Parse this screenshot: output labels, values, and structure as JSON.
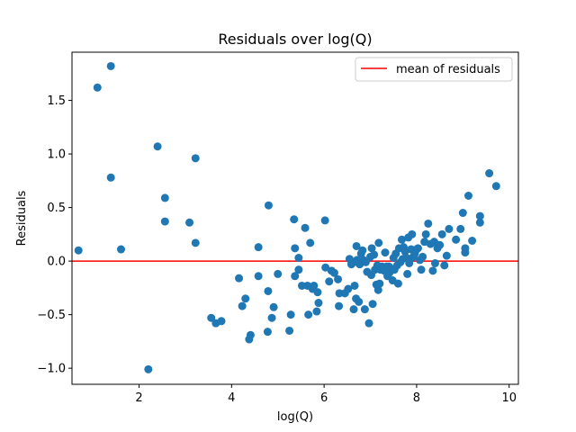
{
  "chart_data": {
    "type": "scatter",
    "title": "Residuals over log(Q)",
    "xlabel": "log(Q)",
    "ylabel": "Residuals",
    "xlim": [
      0.55,
      10.2
    ],
    "ylim": [
      -1.15,
      1.95
    ],
    "xticks": [
      2,
      4,
      6,
      8,
      10
    ],
    "xtick_labels": [
      "2",
      "4",
      "6",
      "8",
      "10"
    ],
    "yticks": [
      -1.0,
      -0.5,
      0.0,
      0.5,
      1.0,
      1.5
    ],
    "ytick_labels": [
      "−1.0",
      "−0.5",
      "0.0",
      "0.5",
      "1.0",
      "1.5"
    ],
    "grid": false,
    "point_color": "#1f77b4",
    "mean_line": {
      "name": "mean of residuals",
      "y": 0.0,
      "color": "#ff0000"
    },
    "legend": {
      "location": "top-right",
      "entries": [
        "mean of residuals"
      ]
    },
    "points": [
      [
        0.69,
        0.1
      ],
      [
        1.1,
        1.62
      ],
      [
        1.39,
        1.82
      ],
      [
        1.39,
        0.78
      ],
      [
        1.61,
        0.11
      ],
      [
        2.2,
        -1.01
      ],
      [
        2.4,
        1.07
      ],
      [
        2.56,
        0.59
      ],
      [
        2.56,
        0.37
      ],
      [
        3.09,
        0.36
      ],
      [
        3.22,
        0.96
      ],
      [
        3.22,
        0.17
      ],
      [
        3.56,
        -0.53
      ],
      [
        3.66,
        -0.58
      ],
      [
        3.78,
        -0.56
      ],
      [
        4.16,
        -0.16
      ],
      [
        4.23,
        -0.42
      ],
      [
        4.3,
        -0.35
      ],
      [
        4.38,
        -0.73
      ],
      [
        4.41,
        -0.69
      ],
      [
        4.58,
        0.13
      ],
      [
        4.58,
        -0.14
      ],
      [
        4.78,
        -0.66
      ],
      [
        4.79,
        -0.28
      ],
      [
        4.8,
        0.52
      ],
      [
        4.87,
        -0.53
      ],
      [
        4.91,
        -0.43
      ],
      [
        5.0,
        -0.12
      ],
      [
        5.25,
        -0.65
      ],
      [
        5.28,
        -0.5
      ],
      [
        5.35,
        0.39
      ],
      [
        5.37,
        0.12
      ],
      [
        5.37,
        -0.14
      ],
      [
        5.45,
        -0.08
      ],
      [
        5.45,
        0.03
      ],
      [
        5.52,
        -0.23
      ],
      [
        5.59,
        0.31
      ],
      [
        5.64,
        -0.23
      ],
      [
        5.66,
        -0.5
      ],
      [
        5.7,
        0.17
      ],
      [
        5.75,
        -0.26
      ],
      [
        5.78,
        -0.23
      ],
      [
        5.84,
        -0.47
      ],
      [
        5.86,
        -0.29
      ],
      [
        5.88,
        -0.39
      ],
      [
        6.02,
        0.38
      ],
      [
        6.03,
        -0.06
      ],
      [
        6.11,
        -0.19
      ],
      [
        6.16,
        -0.09
      ],
      [
        6.22,
        -0.11
      ],
      [
        6.3,
        -0.17
      ],
      [
        6.32,
        -0.42
      ],
      [
        6.33,
        -0.3
      ],
      [
        6.45,
        -0.3
      ],
      [
        6.52,
        -0.26
      ],
      [
        6.55,
        0.02
      ],
      [
        6.59,
        -0.03
      ],
      [
        6.64,
        -0.45
      ],
      [
        6.66,
        -0.23
      ],
      [
        6.69,
        -0.35
      ],
      [
        6.7,
        0.14
      ],
      [
        6.71,
        0.01
      ],
      [
        6.72,
        -0.01
      ],
      [
        6.75,
        -0.38
      ],
      [
        6.77,
        -0.03
      ],
      [
        6.8,
        0.07
      ],
      [
        6.83,
        0.1
      ],
      [
        6.85,
        0.01
      ],
      [
        6.88,
        -0.45
      ],
      [
        6.9,
        -0.01
      ],
      [
        6.93,
        -0.1
      ],
      [
        6.97,
        -0.58
      ],
      [
        7.0,
        0.04
      ],
      [
        7.02,
        -0.13
      ],
      [
        7.03,
        0.12
      ],
      [
        7.05,
        -0.4
      ],
      [
        7.08,
        0.06
      ],
      [
        7.1,
        -0.08
      ],
      [
        7.13,
        -0.22
      ],
      [
        7.15,
        -0.04
      ],
      [
        7.17,
        -0.27
      ],
      [
        7.18,
        0.17
      ],
      [
        7.2,
        -0.21
      ],
      [
        7.22,
        -0.08
      ],
      [
        7.25,
        -0.05
      ],
      [
        7.3,
        -0.09
      ],
      [
        7.32,
        0.08
      ],
      [
        7.35,
        -0.05
      ],
      [
        7.37,
        -0.14
      ],
      [
        7.4,
        -0.05
      ],
      [
        7.41,
        -0.11
      ],
      [
        7.45,
        -0.07
      ],
      [
        7.48,
        -0.18
      ],
      [
        7.5,
        0.03
      ],
      [
        7.52,
        -0.08
      ],
      [
        7.55,
        0.07
      ],
      [
        7.58,
        -0.04
      ],
      [
        7.6,
        -0.21
      ],
      [
        7.62,
        0.12
      ],
      [
        7.65,
        -0.01
      ],
      [
        7.68,
        0.2
      ],
      [
        7.7,
        0.02
      ],
      [
        7.72,
        0.13
      ],
      [
        7.75,
        0.09
      ],
      [
        7.78,
        0.03
      ],
      [
        7.8,
        -0.12
      ],
      [
        7.82,
        0.22
      ],
      [
        7.84,
        -0.02
      ],
      [
        7.86,
        0.02
      ],
      [
        7.88,
        0.11
      ],
      [
        7.9,
        0.25
      ],
      [
        7.93,
        0.04
      ],
      [
        7.96,
        0.07
      ],
      [
        8.0,
        0.11
      ],
      [
        8.03,
        0.12
      ],
      [
        8.07,
        0.01
      ],
      [
        8.1,
        -0.08
      ],
      [
        8.13,
        0.04
      ],
      [
        8.17,
        0.18
      ],
      [
        8.2,
        0.25
      ],
      [
        8.25,
        0.35
      ],
      [
        8.3,
        0.16
      ],
      [
        8.35,
        -0.09
      ],
      [
        8.38,
        0.18
      ],
      [
        8.4,
        -0.02
      ],
      [
        8.45,
        0.12
      ],
      [
        8.5,
        0.15
      ],
      [
        8.55,
        0.25
      ],
      [
        8.6,
        -0.04
      ],
      [
        8.65,
        0.05
      ],
      [
        8.7,
        0.3
      ],
      [
        8.85,
        0.2
      ],
      [
        8.95,
        0.3
      ],
      [
        9.0,
        0.45
      ],
      [
        9.05,
        0.08
      ],
      [
        9.05,
        0.12
      ],
      [
        9.12,
        0.61
      ],
      [
        9.2,
        0.19
      ],
      [
        9.37,
        0.36
      ],
      [
        9.37,
        0.42
      ],
      [
        9.57,
        0.82
      ],
      [
        9.72,
        0.7
      ]
    ]
  }
}
